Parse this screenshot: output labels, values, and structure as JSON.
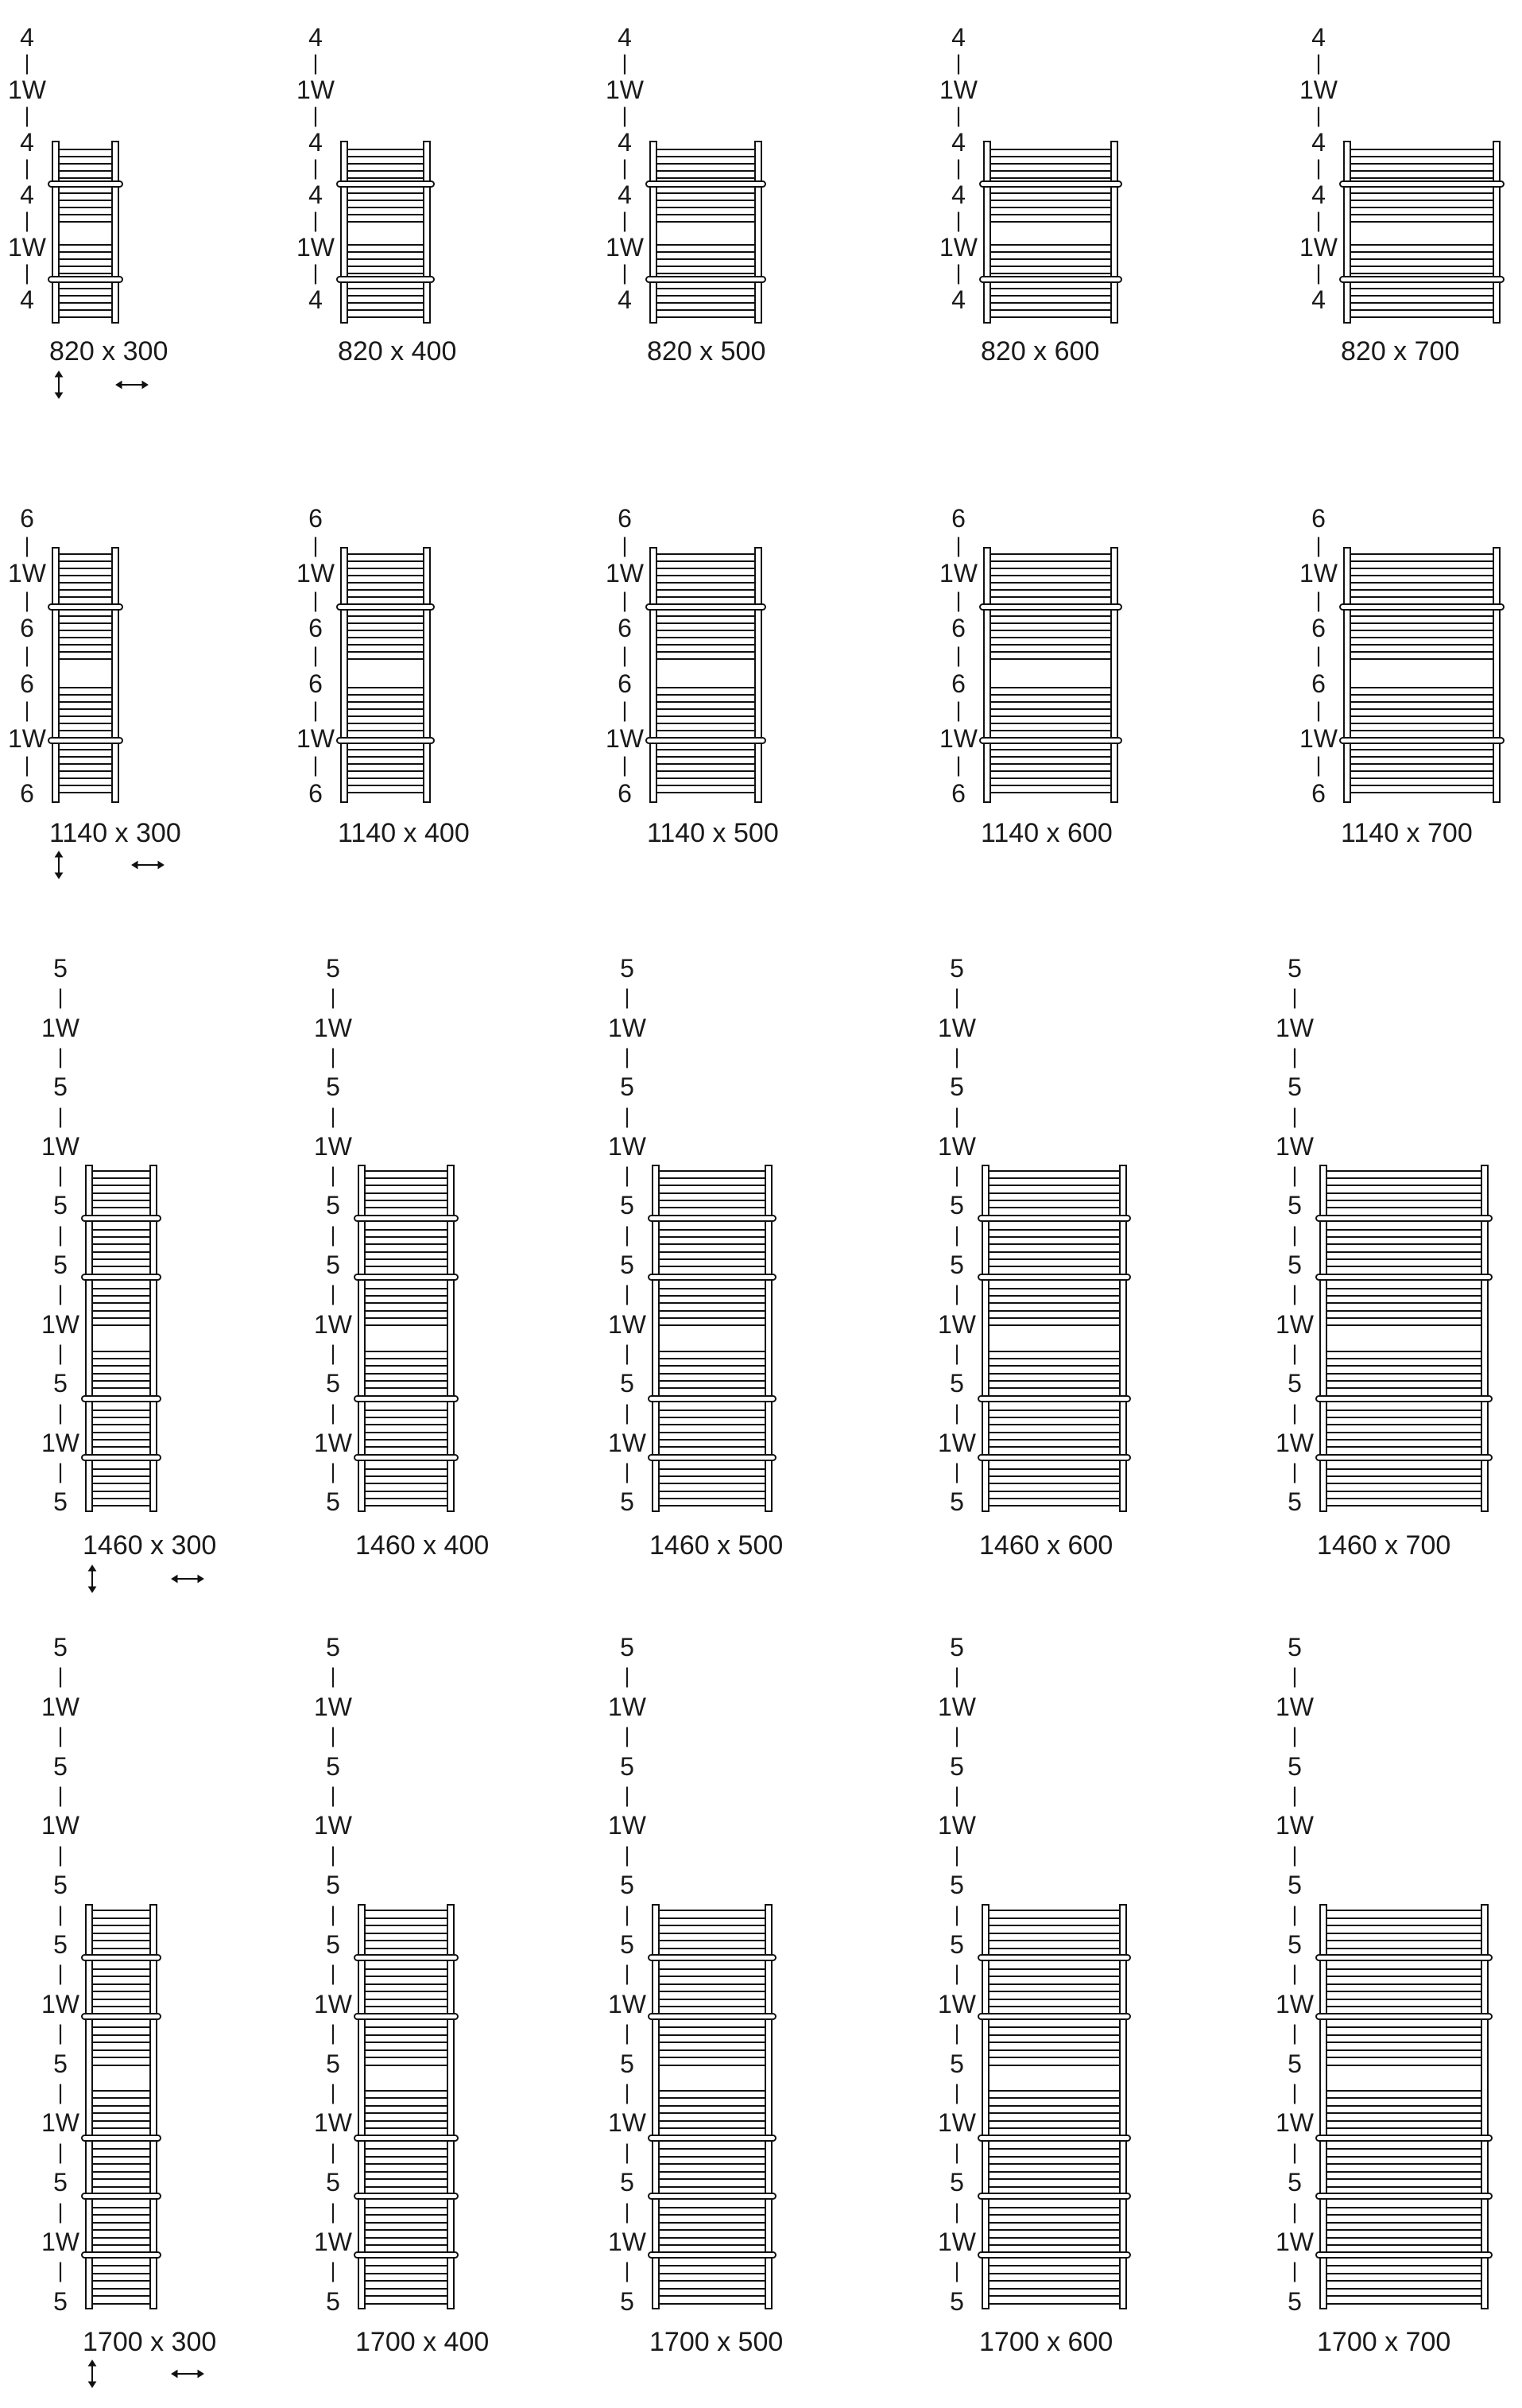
{
  "diagram": {
    "background": "#ffffff",
    "ink": "#1a1a1a",
    "rows": [
      {
        "tube_layout": [
          "4",
          "1W",
          "4",
          "GAP",
          "4",
          "1W",
          "4"
        ],
        "side_labels": [
          "4",
          "1W",
          "4",
          "4",
          "1W",
          "4"
        ],
        "separator": "|",
        "sizes": [
          "820 x 300",
          "820 x 400",
          "820 x 500",
          "820 x 600",
          "820 x 700"
        ]
      },
      {
        "tube_layout": [
          "6",
          "1W",
          "6",
          "GAP",
          "6",
          "1W",
          "6"
        ],
        "side_labels": [
          "6",
          "1W",
          "6",
          "6",
          "1W",
          "6"
        ],
        "separator": "|",
        "sizes": [
          "1140 x 300",
          "1140 x 400",
          "1140 x 500",
          "1140 x 600",
          "1140 x 700"
        ]
      },
      {
        "tube_layout": [
          "5",
          "1W",
          "5",
          "1W",
          "5",
          "GAP",
          "5",
          "1W",
          "5",
          "1W",
          "5"
        ],
        "side_labels": [
          "5",
          "1W",
          "5",
          "1W",
          "5",
          "5",
          "1W",
          "5",
          "1W",
          "5"
        ],
        "separator": "|",
        "sizes": [
          "1460 x 300",
          "1460 x 400",
          "1460 x 500",
          "1460 x 600",
          "1460 x 700"
        ]
      },
      {
        "tube_layout": [
          "5",
          "1W",
          "5",
          "1W",
          "5",
          "GAP",
          "5",
          "1W",
          "5",
          "1W",
          "5",
          "1W",
          "5"
        ],
        "side_labels": [
          "5",
          "1W",
          "5",
          "1W",
          "5",
          "5",
          "1W",
          "5",
          "1W",
          "5",
          "1W",
          "5"
        ],
        "separator": "|",
        "sizes": [
          "1700 x 300",
          "1700 x 400",
          "1700 x 500",
          "1700 x 600",
          "1700 x 700"
        ]
      }
    ],
    "icons": {
      "height_arrow": "up-down-arrow",
      "width_arrow": "left-right-arrow"
    }
  }
}
